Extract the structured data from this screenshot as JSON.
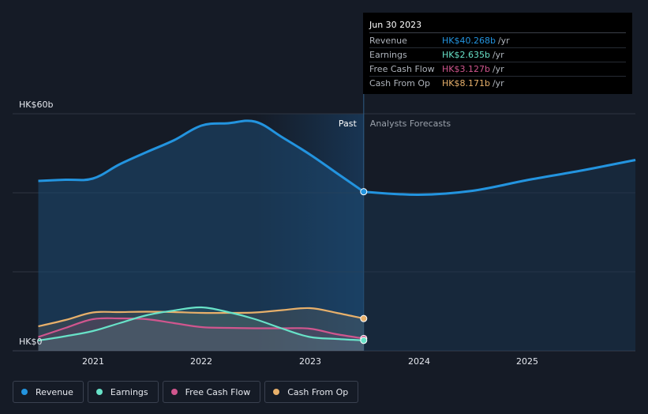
{
  "chart_data": {
    "type": "area",
    "currency_unit": "HK$",
    "y_axis": {
      "min": 0,
      "max": 60,
      "unit": "billions HK$",
      "tick_labels": [
        "HK$0",
        "HK$60b"
      ]
    },
    "x_axis": {
      "tick_labels": [
        "2021",
        "2022",
        "2023",
        "2024",
        "2025"
      ]
    },
    "regions": {
      "past_label": "Past",
      "forecast_label": "Analysts Forecasts",
      "divider_date": "2023-06-30"
    },
    "grid": true,
    "legend_position": "bottom-left",
    "series": [
      {
        "name": "Revenue",
        "key": "revenue",
        "color": "#2394df",
        "points": [
          [
            "2020-06-30",
            43.0
          ],
          [
            "2020-09-30",
            43.3
          ],
          [
            "2020-12-31",
            43.6
          ],
          [
            "2021-03-31",
            47.2
          ],
          [
            "2021-06-30",
            50.3
          ],
          [
            "2021-09-30",
            53.3
          ],
          [
            "2021-12-31",
            57.0
          ],
          [
            "2022-03-31",
            57.6
          ],
          [
            "2022-06-30",
            58.0
          ],
          [
            "2022-09-30",
            54.0
          ],
          [
            "2022-12-31",
            49.7
          ],
          [
            "2023-03-31",
            45.0
          ],
          [
            "2023-06-30",
            40.268
          ]
        ],
        "forecast": [
          [
            "2023-06-30",
            40.268
          ],
          [
            "2023-12-31",
            39.5
          ],
          [
            "2024-06-30",
            40.5
          ],
          [
            "2024-12-31",
            43.2
          ],
          [
            "2025-06-30",
            45.6
          ],
          [
            "2025-12-31",
            48.3
          ]
        ]
      },
      {
        "name": "Earnings",
        "key": "earnings",
        "color": "#68e2c8",
        "points": [
          [
            "2020-06-30",
            2.6
          ],
          [
            "2020-09-30",
            3.7
          ],
          [
            "2020-12-31",
            5.0
          ],
          [
            "2021-03-31",
            7.0
          ],
          [
            "2021-06-30",
            9.0
          ],
          [
            "2021-09-30",
            10.2
          ],
          [
            "2021-12-31",
            11.0
          ],
          [
            "2022-03-31",
            9.8
          ],
          [
            "2022-06-30",
            8.0
          ],
          [
            "2022-09-30",
            5.6
          ],
          [
            "2022-12-31",
            3.5
          ],
          [
            "2023-03-31",
            3.0
          ],
          [
            "2023-06-30",
            2.635
          ]
        ]
      },
      {
        "name": "Free Cash Flow",
        "key": "fcf",
        "color": "#d0568e",
        "points": [
          [
            "2020-06-30",
            3.5
          ],
          [
            "2020-09-30",
            5.8
          ],
          [
            "2020-12-31",
            8.0
          ],
          [
            "2021-03-31",
            8.2
          ],
          [
            "2021-06-30",
            8.0
          ],
          [
            "2021-09-30",
            7.0
          ],
          [
            "2021-12-31",
            6.0
          ],
          [
            "2022-03-31",
            5.8
          ],
          [
            "2022-06-30",
            5.7
          ],
          [
            "2022-09-30",
            5.7
          ],
          [
            "2022-12-31",
            5.6
          ],
          [
            "2023-03-31",
            4.2
          ],
          [
            "2023-06-30",
            3.127
          ]
        ]
      },
      {
        "name": "Cash From Op",
        "key": "cfo",
        "color": "#e7b06b",
        "points": [
          [
            "2020-06-30",
            6.2
          ],
          [
            "2020-09-30",
            7.8
          ],
          [
            "2020-12-31",
            9.7
          ],
          [
            "2021-03-31",
            9.8
          ],
          [
            "2021-06-30",
            9.9
          ],
          [
            "2021-09-30",
            9.8
          ],
          [
            "2021-12-31",
            9.6
          ],
          [
            "2022-03-31",
            9.6
          ],
          [
            "2022-06-30",
            9.7
          ],
          [
            "2022-09-30",
            10.3
          ],
          [
            "2022-12-31",
            10.8
          ],
          [
            "2023-03-31",
            9.6
          ],
          [
            "2023-06-30",
            8.171
          ]
        ]
      }
    ],
    "tooltip": {
      "date": "Jun 30 2023",
      "rows": [
        {
          "name": "Revenue",
          "value": "HK$40.268b",
          "unit": "/yr",
          "color": "#2394df"
        },
        {
          "name": "Earnings",
          "value": "HK$2.635b",
          "unit": "/yr",
          "color": "#68e2c8"
        },
        {
          "name": "Free Cash Flow",
          "value": "HK$3.127b",
          "unit": "/yr",
          "color": "#d0568e"
        },
        {
          "name": "Cash From Op",
          "value": "HK$8.171b",
          "unit": "/yr",
          "color": "#e7b06b"
        }
      ]
    }
  },
  "legend": {
    "items": [
      {
        "label": "Revenue",
        "color": "#2394df"
      },
      {
        "label": "Earnings",
        "color": "#68e2c8"
      },
      {
        "label": "Free Cash Flow",
        "color": "#d0568e"
      },
      {
        "label": "Cash From Op",
        "color": "#e7b06b"
      }
    ]
  }
}
